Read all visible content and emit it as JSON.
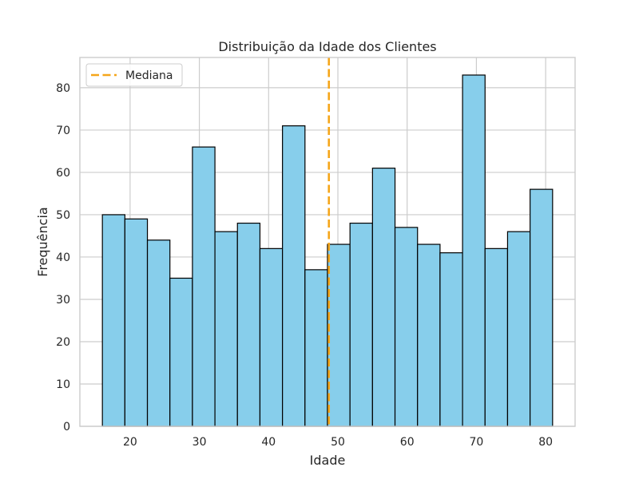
{
  "chart_data": {
    "type": "bar",
    "title": "Distribuição da Idade dos Clientes",
    "xlabel": "Idade",
    "ylabel": "Frequência",
    "xlim": [
      12.75,
      84.25
    ],
    "ylim": [
      0,
      87.15
    ],
    "x_ticks": [
      20,
      30,
      40,
      50,
      60,
      70,
      80
    ],
    "y_ticks": [
      0,
      10,
      20,
      30,
      40,
      50,
      60,
      70,
      80
    ],
    "grid": true,
    "bar_color": "#87CEEB",
    "bar_edge_color": "#000000",
    "bins": [
      {
        "start": 16.0,
        "end": 19.25,
        "count": 50
      },
      {
        "start": 19.25,
        "end": 22.5,
        "count": 49
      },
      {
        "start": 22.5,
        "end": 25.75,
        "count": 44
      },
      {
        "start": 25.75,
        "end": 29.0,
        "count": 35
      },
      {
        "start": 29.0,
        "end": 32.25,
        "count": 66
      },
      {
        "start": 32.25,
        "end": 35.5,
        "count": 46
      },
      {
        "start": 35.5,
        "end": 38.75,
        "count": 48
      },
      {
        "start": 38.75,
        "end": 42.0,
        "count": 42
      },
      {
        "start": 42.0,
        "end": 45.25,
        "count": 71
      },
      {
        "start": 45.25,
        "end": 48.5,
        "count": 37
      },
      {
        "start": 48.5,
        "end": 51.75,
        "count": 43
      },
      {
        "start": 51.75,
        "end": 55.0,
        "count": 48
      },
      {
        "start": 55.0,
        "end": 58.25,
        "count": 61
      },
      {
        "start": 58.25,
        "end": 61.5,
        "count": 47
      },
      {
        "start": 61.5,
        "end": 64.75,
        "count": 43
      },
      {
        "start": 64.75,
        "end": 68.0,
        "count": 41
      },
      {
        "start": 68.0,
        "end": 71.25,
        "count": 83
      },
      {
        "start": 71.25,
        "end": 74.5,
        "count": 42
      },
      {
        "start": 74.5,
        "end": 77.75,
        "count": 46
      },
      {
        "start": 77.75,
        "end": 81.0,
        "count": 56
      }
    ],
    "median": {
      "value": 48.7,
      "label": "Mediana",
      "color": "#F5A61A",
      "style": "dashed"
    },
    "legend": {
      "position": "upper left",
      "entries": [
        "Mediana"
      ]
    }
  }
}
